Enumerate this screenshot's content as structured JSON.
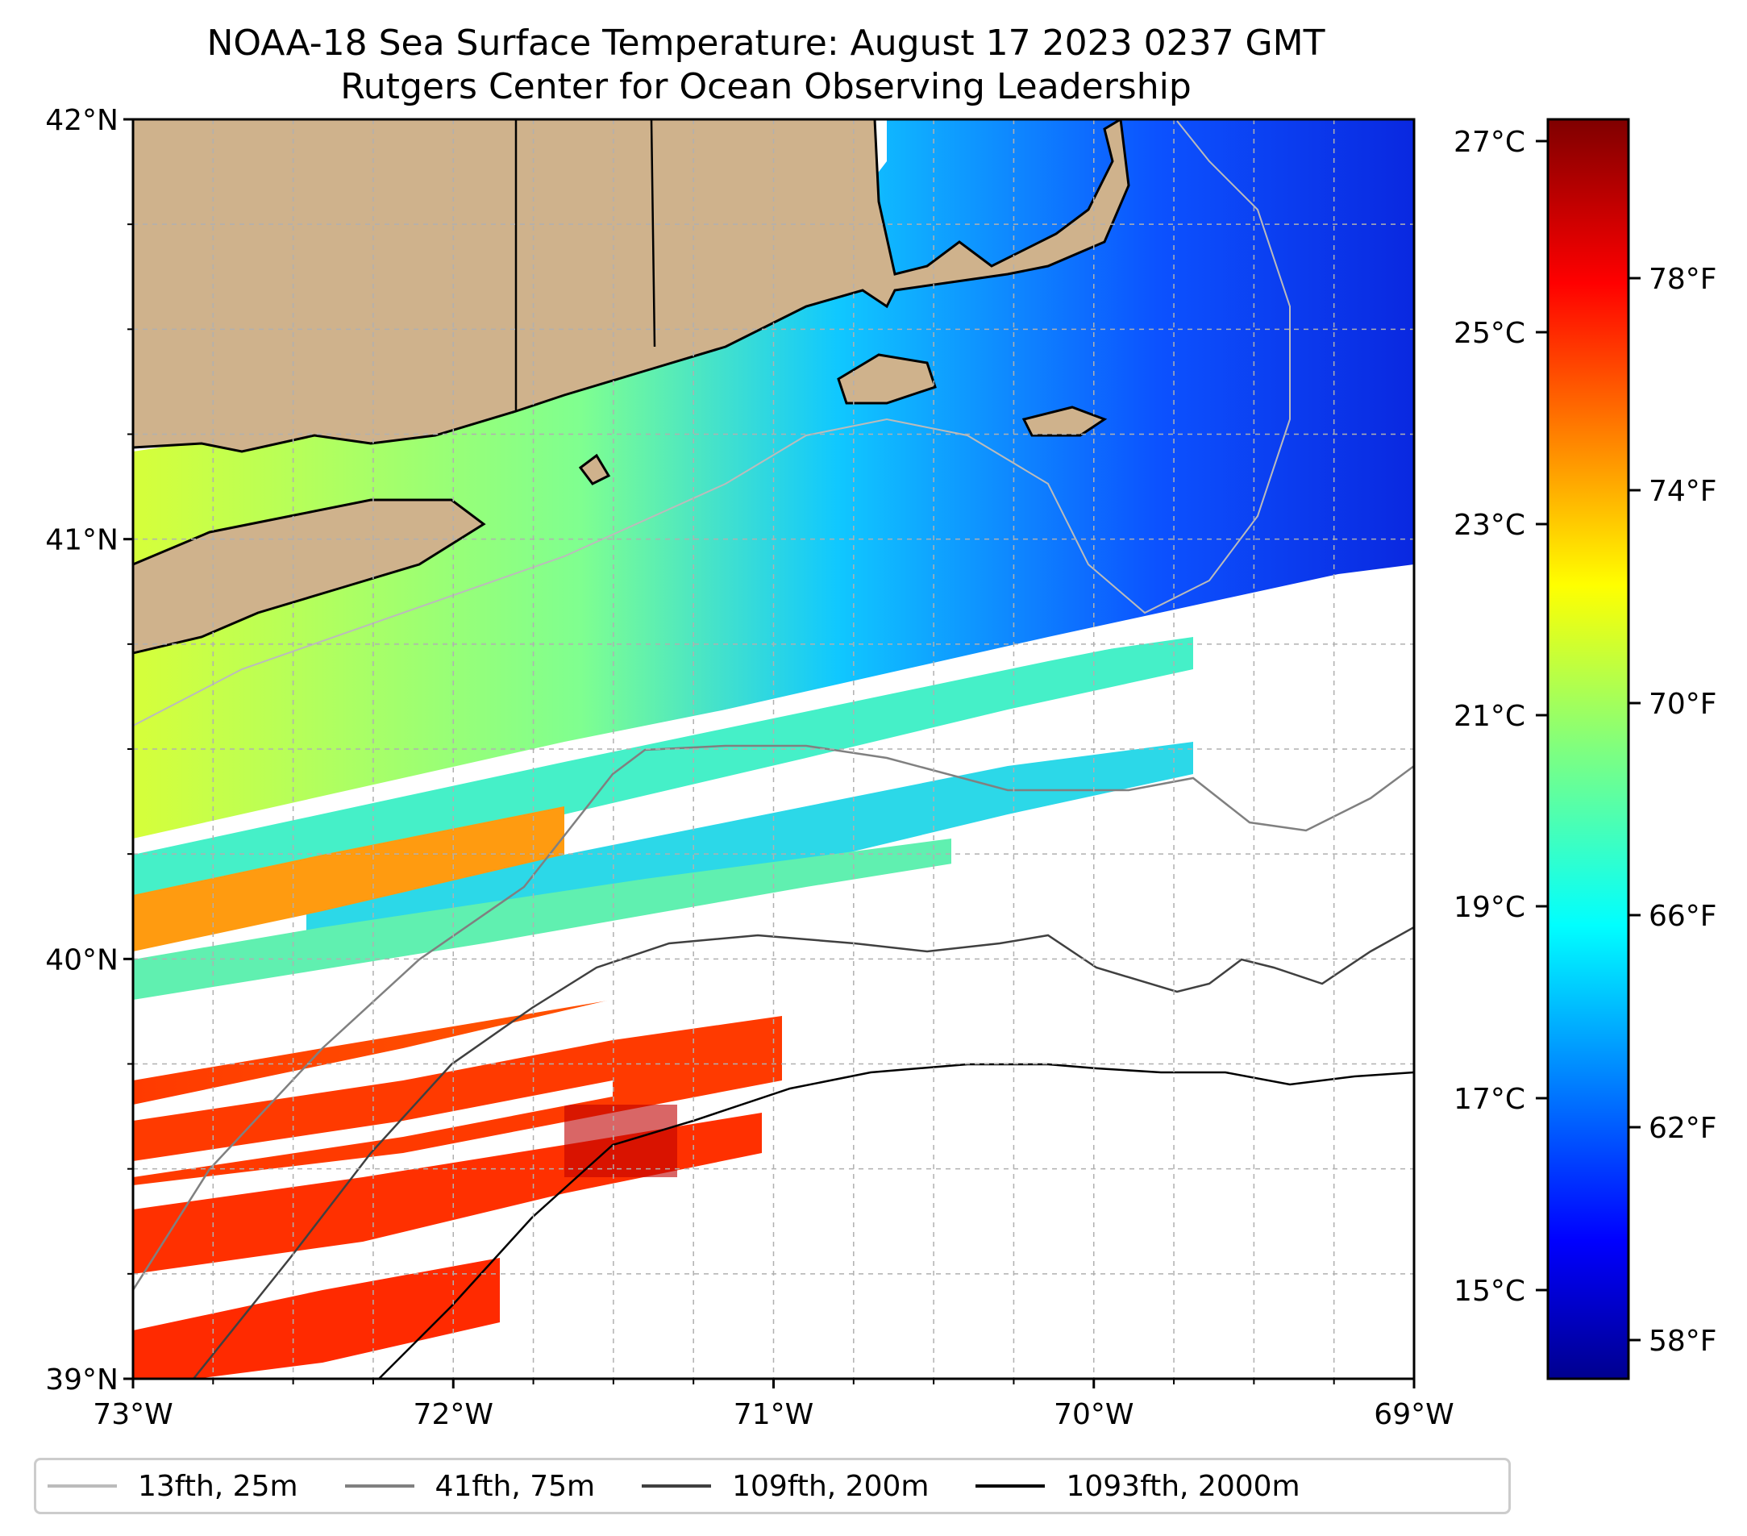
{
  "title": "NOAA-18 Sea Surface Temperature: August 17 2023 0237 GMT",
  "subtitle": "Rutgers Center for Ocean Observing Leadership",
  "map": {
    "lon_range": [
      -73,
      -69
    ],
    "lat_range": [
      39,
      42
    ],
    "x_ticks": [
      "73°W",
      "72°W",
      "71°W",
      "70°W",
      "69°W"
    ],
    "y_ticks": [
      "42°N",
      "41°N",
      "40°N",
      "39°N"
    ],
    "gridlines": true,
    "land_color": "#cfb28c",
    "no_data_color": "#ffffff"
  },
  "colorbar": {
    "colormap": "jet",
    "celsius_ticks": [
      "27°C",
      "25°C",
      "23°C",
      "21°C",
      "19°C",
      "17°C",
      "15°C"
    ],
    "fahrenheit_ticks": [
      "78°F",
      "74°F",
      "70°F",
      "66°F",
      "62°F",
      "58°F"
    ]
  },
  "legend": {
    "items": [
      {
        "label": "13fth, 25m",
        "color": "#bbbbbb"
      },
      {
        "label": "41fth, 75m",
        "color": "#808080"
      },
      {
        "label": "109fth, 200m",
        "color": "#404040"
      },
      {
        "label": "1093fth, 2000m",
        "color": "#000000"
      }
    ]
  }
}
